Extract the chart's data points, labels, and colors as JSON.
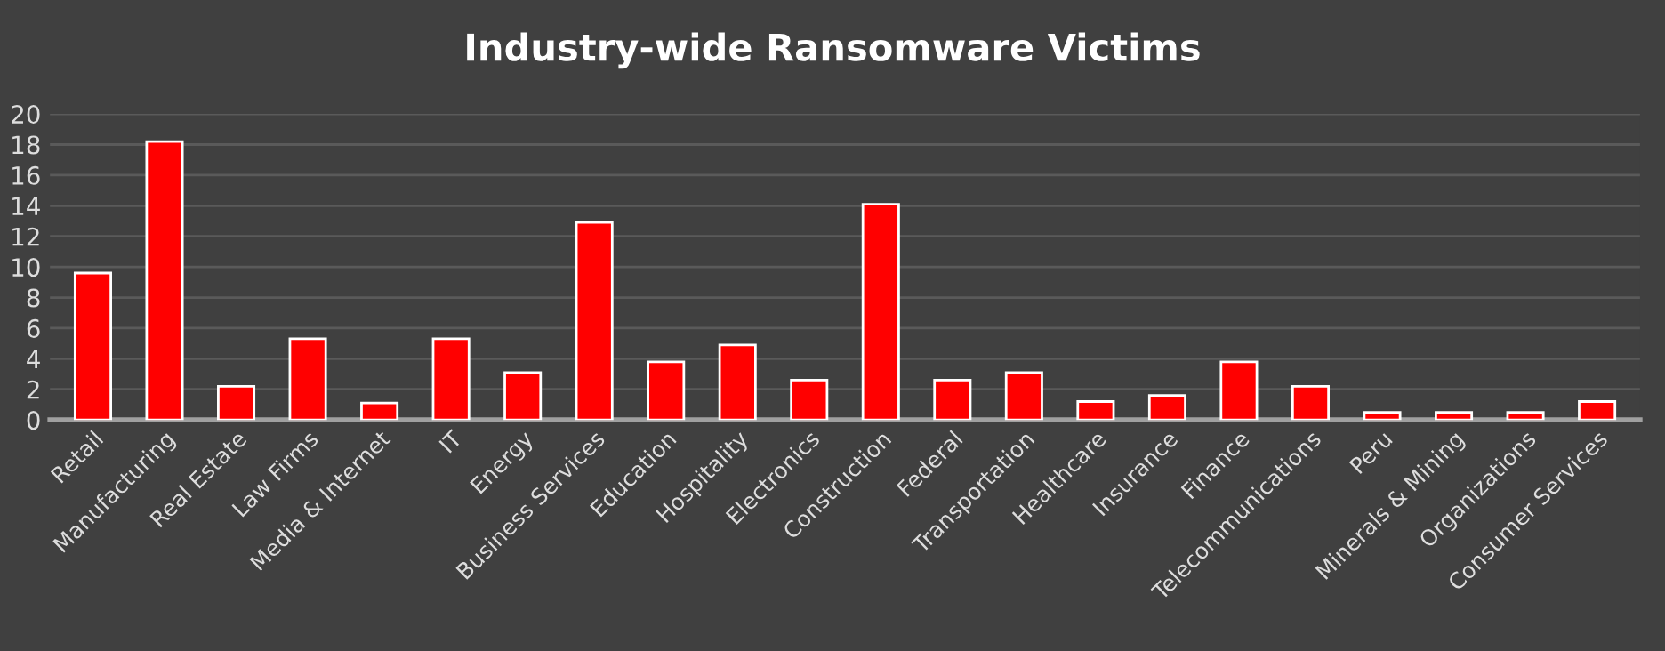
{
  "chart_data": {
    "type": "bar",
    "title": "Industry-wide Ransomware Victims",
    "categories": [
      "Retail",
      "Manufacturing",
      "Real Estate",
      "Law Firms",
      "Media & Internet",
      "IT",
      "Energy",
      "Business Services",
      "Education",
      "Hospitality",
      "Electronics",
      "Construction",
      "Federal",
      "Transportation",
      "Healthcare",
      "Insurance",
      "Finance",
      "Telecommunications",
      "Peru",
      "Minerals & Mining",
      "Organizations",
      "Consumer Services"
    ],
    "values": [
      9.6,
      18.2,
      2.2,
      5.3,
      1.1,
      5.3,
      3.1,
      12.9,
      3.8,
      4.9,
      2.6,
      14.1,
      2.6,
      3.1,
      1.2,
      1.6,
      3.8,
      2.2,
      0.5,
      0.5,
      0.5,
      1.2
    ],
    "color": "#ff0000",
    "ylim": [
      0,
      20
    ],
    "yticks": [
      0,
      2,
      4,
      6,
      8,
      10,
      12,
      14,
      16,
      18,
      20
    ],
    "grid": "y"
  }
}
